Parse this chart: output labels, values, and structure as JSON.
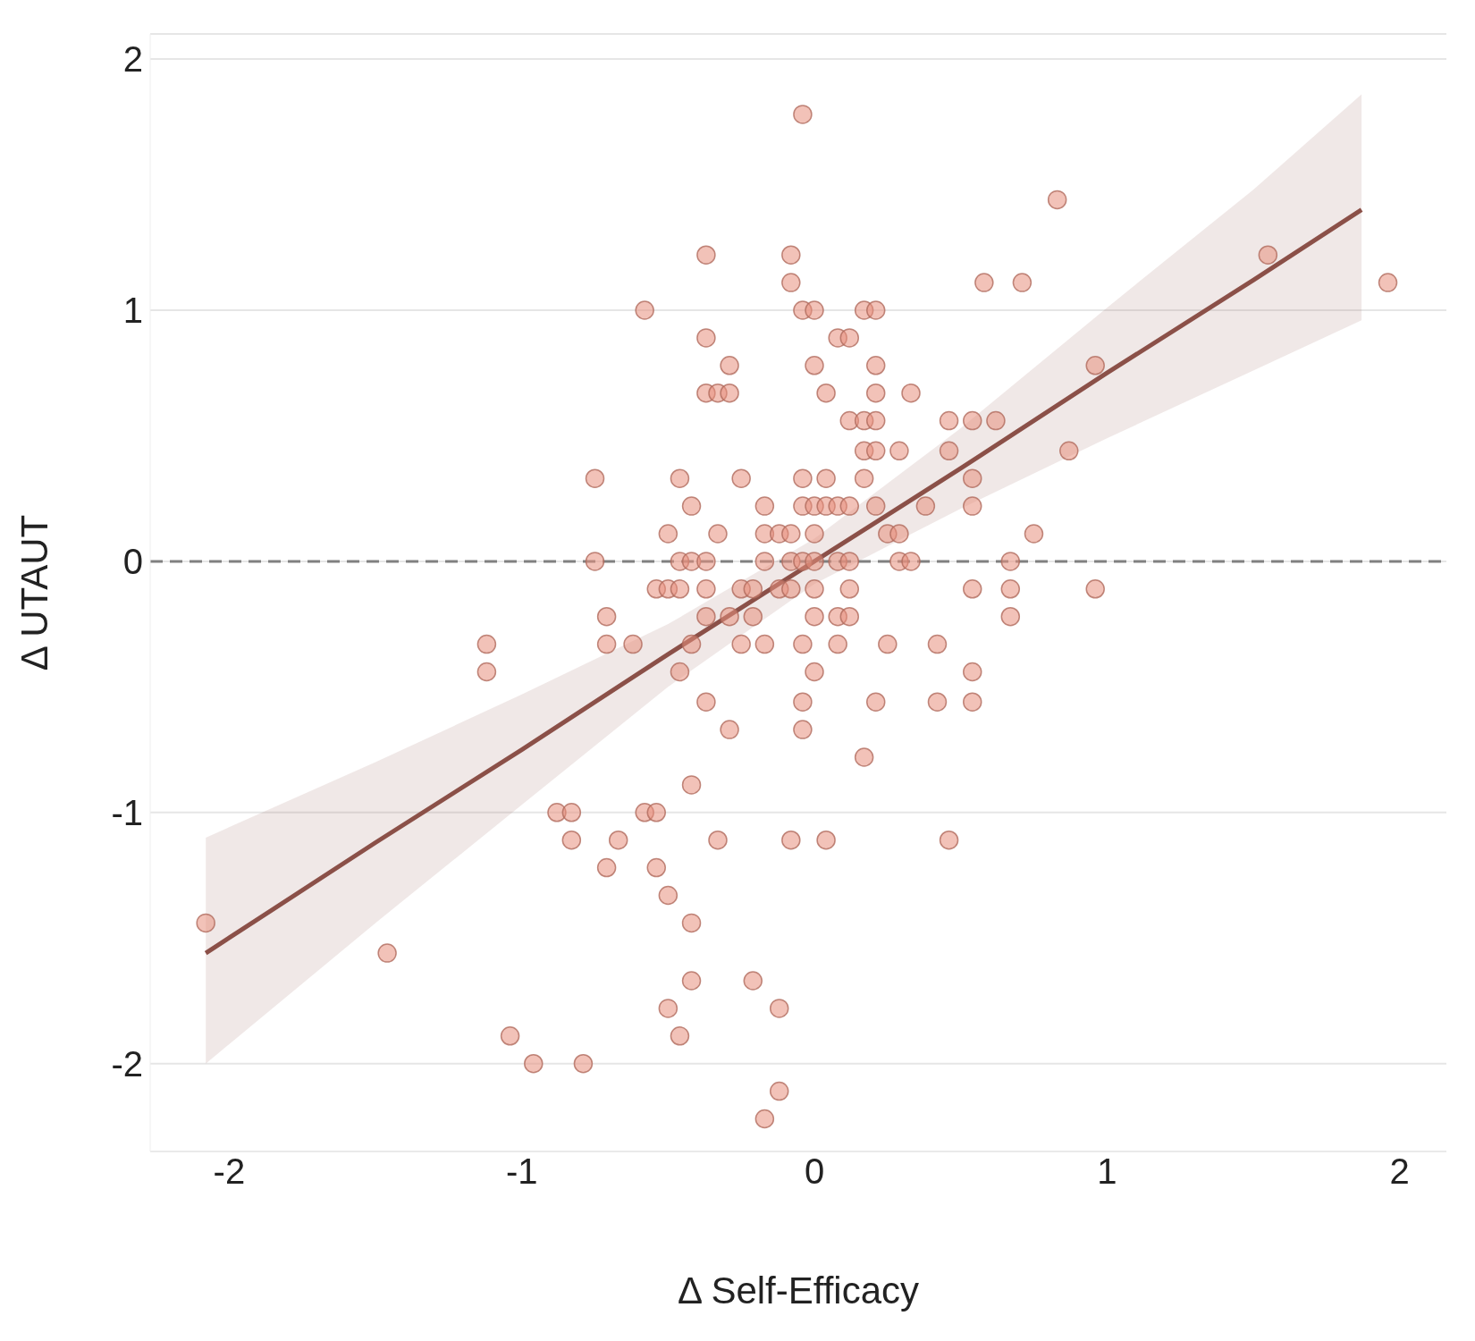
{
  "chart_data": {
    "type": "scatter",
    "xlabel": "Δ Self-Efficacy",
    "ylabel": "Δ UTAUT",
    "xlim": [
      -2.27,
      2.16
    ],
    "ylim": [
      -2.35,
      2.1
    ],
    "xticks": [
      -2,
      -1,
      0,
      1,
      2
    ],
    "yticks": [
      -2,
      -1,
      0,
      1,
      2
    ],
    "grid": "y",
    "legend": false,
    "series": [
      {
        "type": "scatter",
        "marker": "circle",
        "color": "#e8907e",
        "x": [
          -2.08,
          -1.46,
          -1.12,
          -1.12,
          -1.04,
          -0.96,
          -0.88,
          -0.83,
          -0.83,
          -0.79,
          -0.75,
          -0.75,
          -0.71,
          -0.71,
          -0.71,
          -0.67,
          -0.62,
          -0.58,
          -0.58,
          -0.54,
          -0.54,
          -0.54,
          -0.5,
          -0.5,
          -0.5,
          -0.5,
          -0.46,
          -0.46,
          -0.46,
          -0.46,
          -0.46,
          -0.42,
          -0.42,
          -0.42,
          -0.42,
          -0.42,
          -0.42,
          -0.37,
          -0.37,
          -0.37,
          -0.37,
          -0.37,
          -0.37,
          -0.37,
          -0.33,
          -0.33,
          -0.33,
          -0.29,
          -0.29,
          -0.29,
          -0.29,
          -0.25,
          -0.25,
          -0.25,
          -0.21,
          -0.21,
          -0.21,
          -0.17,
          -0.17,
          -0.17,
          -0.17,
          -0.17,
          -0.12,
          -0.12,
          -0.12,
          -0.12,
          -0.08,
          -0.08,
          -0.08,
          -0.08,
          -0.08,
          -0.08,
          -0.04,
          -0.04,
          -0.04,
          -0.04,
          -0.04,
          -0.04,
          -0.04,
          -0.04,
          0,
          0,
          0,
          0,
          0,
          0,
          0,
          0,
          0.04,
          0.04,
          0.04,
          0.04,
          0.08,
          0.08,
          0.08,
          0.08,
          0.08,
          0.12,
          0.12,
          0.12,
          0.12,
          0.12,
          0.12,
          0.17,
          0.17,
          0.17,
          0.17,
          0.17,
          0.21,
          0.21,
          0.21,
          0.21,
          0.21,
          0.21,
          0.21,
          0.25,
          0.25,
          0.29,
          0.29,
          0.29,
          0.33,
          0.33,
          0.38,
          0.42,
          0.42,
          0.46,
          0.46,
          0.46,
          0.54,
          0.54,
          0.54,
          0.54,
          0.54,
          0.54,
          0.58,
          0.62,
          0.67,
          0.67,
          0.67,
          0.71,
          0.75,
          0.83,
          0.87,
          0.96,
          0.96,
          1.55,
          1.96
        ],
        "values": [
          -1.44,
          -1.56,
          -0.33,
          -0.44,
          -1.89,
          -2.0,
          -1.0,
          -1.0,
          -1.11,
          -2.0,
          0.33,
          0,
          -0.22,
          -0.33,
          -1.22,
          -1.11,
          -0.33,
          1.0,
          -1.0,
          -0.11,
          -1.0,
          -1.22,
          0.11,
          -0.11,
          -1.33,
          -1.78,
          0.33,
          0,
          -0.11,
          -0.44,
          -1.89,
          0.22,
          0,
          -0.33,
          -0.89,
          -1.44,
          -1.67,
          1.22,
          0.89,
          0.67,
          0,
          -0.11,
          -0.22,
          -0.56,
          0.67,
          0.11,
          -1.11,
          0.78,
          0.67,
          -0.22,
          -0.67,
          0.33,
          -0.11,
          -0.33,
          -0.11,
          -0.22,
          -1.67,
          0.22,
          0.11,
          0,
          -0.33,
          -2.22,
          0.11,
          -0.11,
          -1.78,
          -2.11,
          1.22,
          1.11,
          0.11,
          0,
          -0.11,
          -1.11,
          1.78,
          1.0,
          0.33,
          0.22,
          0,
          -0.33,
          -0.56,
          -0.67,
          1.0,
          0.78,
          0.22,
          0.11,
          0,
          -0.11,
          -0.22,
          -0.44,
          0.67,
          0.33,
          0.22,
          -1.11,
          0.89,
          0.22,
          0,
          -0.22,
          -0.33,
          0.89,
          0.56,
          0.22,
          0,
          -0.11,
          -0.22,
          1.0,
          0.56,
          0.44,
          0.33,
          -0.78,
          1.0,
          0.78,
          0.67,
          0.56,
          0.44,
          0.22,
          -0.56,
          0.11,
          -0.33,
          0.44,
          0.11,
          0,
          0.67,
          0,
          0.22,
          -0.33,
          -0.56,
          0.56,
          0.44,
          -1.11,
          0.56,
          0.33,
          0.22,
          -0.11,
          -0.44,
          -0.56,
          1.11,
          0.56,
          0,
          -0.11,
          -0.22,
          1.11,
          0.11,
          1.44,
          0.44,
          0.78,
          -0.11,
          1.22,
          1.11
        ]
      },
      {
        "type": "line",
        "marker": "none",
        "line_style": "solid",
        "color": "#8b5048",
        "x": [
          -2.08,
          -1.5,
          -1,
          -0.5,
          0,
          0.5,
          1,
          1.5,
          1.87
        ],
        "values": [
          -1.56,
          -1.12,
          -0.75,
          -0.37,
          0,
          0.37,
          0.75,
          1.12,
          1.4
        ],
        "lower": [
          -2.0,
          -1.44,
          -0.97,
          -0.5,
          -0.09,
          0.21,
          0.49,
          0.76,
          0.96
        ],
        "upper": [
          -1.1,
          -0.8,
          -0.53,
          -0.25,
          0.09,
          0.53,
          1.01,
          1.48,
          1.86
        ]
      }
    ],
    "ref_lines": [
      {
        "axis": "y",
        "value": 0,
        "color": "#808080",
        "line_style": "dashed"
      }
    ]
  }
}
